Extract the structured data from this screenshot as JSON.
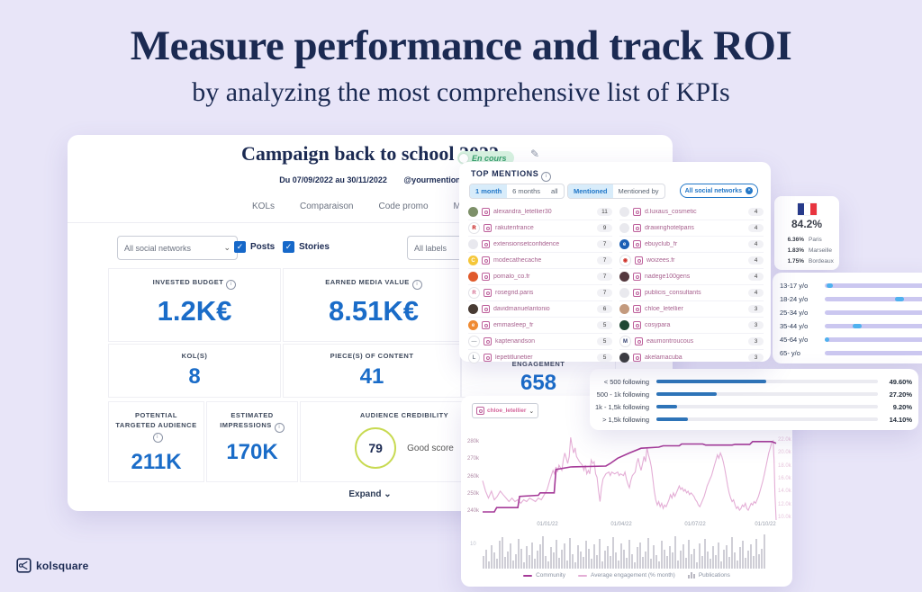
{
  "hero": {
    "title": "Measure performance and track ROI",
    "subtitle": "by analyzing the most comprehensive list of KPIs"
  },
  "icons": {
    "info": "i",
    "chevron_down": "⌄",
    "pencil": "✎",
    "check": "✓",
    "close": "×"
  },
  "campaign_card": {
    "title": "Campaign back to school 2022",
    "status_badge": "En cours",
    "date_range": "Du 07/09/2022 au 30/11/2022",
    "mention_handle": "@yourmention",
    "tabs": [
      "KOLs",
      "Comparaison",
      "Code promo",
      "Messages"
    ],
    "filters": {
      "social_networks": "All social networks",
      "posts_label": "Posts",
      "stories_label": "Stories",
      "labels_placeholder": "All labels"
    },
    "kpis": {
      "invested_budget": {
        "label": "INVESTED BUDGET",
        "value": "1.2K€"
      },
      "earned_media_value": {
        "label": "EARNED MEDIA VALUE",
        "value": "8.51K€"
      },
      "kols": {
        "label": "KOL(S)",
        "value": "8"
      },
      "pieces_of_content": {
        "label": "PIECE(S) OF CONTENT",
        "value": "41"
      },
      "engagement": {
        "label": "ENGAGEMENT",
        "value": "658"
      },
      "potential_targeted_audience": {
        "label": "POTENTIAL TARGETED AUDIENCE",
        "value": "211K"
      },
      "estimated_impressions": {
        "label": "ESTIMATED IMPRESSIONS",
        "value": "170K"
      },
      "audience_credibility": {
        "label": "AUDIENCE CREDIBILITY",
        "score": "79",
        "score_label": "Good score"
      }
    },
    "expand_label": "Expand"
  },
  "top_mentions": {
    "title": "TOP MENTIONS",
    "period_options": [
      "1 month",
      "6 months",
      "all"
    ],
    "period_active": "1 month",
    "mention_options": [
      "Mentioned",
      "Mentioned by"
    ],
    "mention_active": "Mentioned",
    "network_filter": "All social networks",
    "left": [
      {
        "name": "alexandra_letellier30",
        "count": "11",
        "av": "#7d9069",
        "ch": "",
        "cc": "#fff",
        "bd": 0
      },
      {
        "name": "rakutenfrance",
        "count": "9",
        "av": "#ffffff",
        "ch": "R",
        "cc": "#bf0000",
        "bd": 1
      },
      {
        "name": "extensionsetconfidence",
        "count": "7",
        "av": "#e8e8ee",
        "ch": "",
        "cc": "#fff",
        "bd": 0
      },
      {
        "name": "modecathecache",
        "count": "7",
        "av": "#f5c73a",
        "ch": "C",
        "cc": "#ffffff",
        "bd": 0
      },
      {
        "name": "pomalo_co.fr",
        "count": "7",
        "av": "#e05a2b",
        "ch": "",
        "cc": "#fff",
        "bd": 0
      },
      {
        "name": "rosegrid.paris",
        "count": "7",
        "av": "#ffffff",
        "ch": "R",
        "cc": "#d2688c",
        "bd": 1
      },
      {
        "name": "davidmanuelantonio",
        "count": "6",
        "av": "#473a33",
        "ch": "",
        "cc": "#fff",
        "bd": 0
      },
      {
        "name": "emmasleep_fr",
        "count": "5",
        "av": "#ef8b33",
        "ch": "e",
        "cc": "#ffffff",
        "bd": 0
      },
      {
        "name": "kaptenandson",
        "count": "5",
        "av": "#ffffff",
        "ch": "—",
        "cc": "#9aa0a8",
        "bd": 1
      },
      {
        "name": "lepetitlunetier",
        "count": "5",
        "av": "#ffffff",
        "ch": "L",
        "cc": "#7d8590",
        "bd": 1
      }
    ],
    "right": [
      {
        "name": "d.luxaus_cosmetic",
        "count": "4",
        "av": "#e9e9ee",
        "ch": "",
        "cc": "#fff",
        "bd": 0
      },
      {
        "name": "drawinghotelparis",
        "count": "4",
        "av": "#e9e9ee",
        "ch": "",
        "cc": "#fff",
        "bd": 0
      },
      {
        "name": "ebuyclub_fr",
        "count": "4",
        "av": "#1b5fb5",
        "ch": "e",
        "cc": "#ffffff",
        "bd": 0
      },
      {
        "name": "woizees.fr",
        "count": "4",
        "av": "#ffffff",
        "ch": "◉",
        "cc": "#d0342c",
        "bd": 1
      },
      {
        "name": "nadege100gens",
        "count": "4",
        "av": "#54383e",
        "ch": "",
        "cc": "#fff",
        "bd": 0
      },
      {
        "name": "publicis_consultants",
        "count": "4",
        "av": "#e9e9ee",
        "ch": "",
        "cc": "#fff",
        "bd": 0
      },
      {
        "name": "chloe_letellier",
        "count": "3",
        "av": "#c39a7e",
        "ch": "",
        "cc": "#fff",
        "bd": 0
      },
      {
        "name": "cosypara",
        "count": "3",
        "av": "#1e4733",
        "ch": "",
        "cc": "#fff",
        "bd": 0
      },
      {
        "name": "eaumontroucous",
        "count": "3",
        "av": "#ffffff",
        "ch": "M",
        "cc": "#33406e",
        "bd": 1
      },
      {
        "name": "akelamacuba",
        "count": "3",
        "av": "#3c3c42",
        "ch": "",
        "cc": "#fff",
        "bd": 0
      }
    ]
  },
  "geo_card": {
    "country_percent": "84.2%",
    "flag_colors": [
      "#273a8a",
      "#ffffff",
      "#e8343f"
    ],
    "cities": [
      {
        "pct": "6.36%",
        "city": "Paris"
      },
      {
        "pct": "1.83%",
        "city": "Marseille"
      },
      {
        "pct": "1.75%",
        "city": "Bordeaux"
      }
    ]
  },
  "age_panel": {
    "rows": [
      {
        "label": "13-17 y/o",
        "marker": [
          2,
          6
        ]
      },
      {
        "label": "18-24 y/o",
        "marker": [
          66,
          9
        ]
      },
      {
        "label": "25-34 y/o",
        "marker": null
      },
      {
        "label": "35-44 y/o",
        "marker": [
          26,
          9
        ]
      },
      {
        "label": "45-64 y/o",
        "marker": [
          0,
          4
        ]
      },
      {
        "label": "65- y/o",
        "marker": null
      }
    ]
  },
  "followers_card": {
    "rows": [
      {
        "label": "< 500 following",
        "pct": "49.60%",
        "value": 49.6
      },
      {
        "label": "500 - 1k following",
        "pct": "27.20%",
        "value": 27.2
      },
      {
        "label": "1k - 1,5k following",
        "pct": "9.20%",
        "value": 9.2
      },
      {
        "label": "> 1,5k following",
        "pct": "14.10%",
        "value": 14.1
      }
    ]
  },
  "chart_card": {
    "dropdown_value": "chloe_letellier",
    "chart_data": {
      "type": "line",
      "title": "",
      "y_left_ticks": [
        "280k",
        "270k",
        "260k",
        "250k",
        "240k"
      ],
      "y_right_ticks": [
        "22.0k",
        "20.0k",
        "18.0k",
        "16.0k",
        "14.0k",
        "12.0k",
        "10.0k"
      ],
      "x_ticks": [
        "01/01/22",
        "01/04/22",
        "01/07/22",
        "01/10/22"
      ],
      "legend": [
        "Community",
        "Average engagement (% month)",
        "Publications"
      ],
      "colors": {
        "community": "#a53a98",
        "engagement": "#e4aed6",
        "publications": "#cfced6"
      },
      "community_series": [
        [
          0,
          240
        ],
        [
          4,
          240
        ],
        [
          4.8,
          242.5
        ],
        [
          12,
          242.5
        ],
        [
          12.6,
          249
        ],
        [
          19,
          249.6
        ],
        [
          19.6,
          251
        ],
        [
          24.4,
          251
        ],
        [
          25,
          264.5
        ],
        [
          30,
          266
        ],
        [
          42,
          266.5
        ],
        [
          43.5,
          268
        ],
        [
          46,
          271
        ],
        [
          50,
          274
        ],
        [
          54,
          276.8
        ],
        [
          60,
          277.4
        ],
        [
          61.5,
          278.2
        ],
        [
          67,
          278.2
        ],
        [
          67.8,
          279.2
        ],
        [
          75,
          279.2
        ],
        [
          76,
          278.6
        ],
        [
          85,
          278.6
        ],
        [
          86,
          279
        ],
        [
          91,
          279
        ],
        [
          92,
          280.6
        ],
        [
          98.5,
          280.6
        ],
        [
          100,
          279.6
        ]
      ],
      "engagement_series": [
        [
          0,
          258
        ],
        [
          1,
          252
        ],
        [
          2,
          248
        ],
        [
          3,
          252
        ],
        [
          4,
          247
        ],
        [
          5,
          249
        ],
        [
          6,
          252
        ],
        [
          7,
          250
        ],
        [
          8,
          248
        ],
        [
          9,
          246
        ],
        [
          10,
          248
        ],
        [
          11,
          246
        ],
        [
          12,
          247
        ],
        [
          13,
          245
        ],
        [
          14,
          247
        ],
        [
          15,
          246
        ],
        [
          16,
          248
        ],
        [
          17,
          247
        ],
        [
          18,
          246
        ],
        [
          19,
          248
        ],
        [
          20,
          247
        ],
        [
          21,
          250
        ],
        [
          22,
          253
        ],
        [
          23,
          259
        ],
        [
          24,
          264
        ],
        [
          24.5,
          262
        ],
        [
          25,
          266
        ],
        [
          25.5,
          263
        ],
        [
          26,
          267
        ],
        [
          27,
          264
        ],
        [
          27.5,
          270
        ],
        [
          28,
          274
        ],
        [
          28.5,
          271
        ],
        [
          29,
          268
        ],
        [
          29.5,
          272
        ],
        [
          30,
          283
        ],
        [
          30.5,
          278
        ],
        [
          31,
          274
        ],
        [
          31.5,
          277
        ],
        [
          32,
          272
        ],
        [
          33,
          269
        ],
        [
          34,
          267
        ],
        [
          34.5,
          264
        ],
        [
          35,
          267
        ],
        [
          35.5,
          262
        ],
        [
          36,
          264
        ],
        [
          36.5,
          262
        ],
        [
          37,
          270
        ],
        [
          37.5,
          268
        ],
        [
          38,
          269
        ],
        [
          38.5,
          262
        ],
        [
          39,
          260
        ],
        [
          39.5,
          252
        ],
        [
          40,
          246
        ],
        [
          40.5,
          254
        ],
        [
          41,
          259
        ],
        [
          42,
          262
        ],
        [
          43,
          263
        ],
        [
          43.5,
          261
        ],
        [
          44,
          263
        ],
        [
          45,
          262
        ],
        [
          46,
          263
        ],
        [
          46.5,
          261
        ],
        [
          47,
          262
        ],
        [
          48,
          261
        ],
        [
          48.5,
          263
        ],
        [
          49,
          259
        ],
        [
          49.5,
          256
        ],
        [
          50,
          254
        ],
        [
          50.5,
          258
        ],
        [
          51,
          261
        ],
        [
          52,
          263
        ],
        [
          52.5,
          268
        ],
        [
          53,
          271
        ],
        [
          53.5,
          267
        ],
        [
          54,
          264
        ],
        [
          54.5,
          268
        ],
        [
          55,
          272
        ],
        [
          55.5,
          269
        ],
        [
          56,
          277
        ],
        [
          56.5,
          273
        ],
        [
          57,
          270
        ],
        [
          57.5,
          266
        ],
        [
          58,
          259
        ],
        [
          58.5,
          252
        ],
        [
          59,
          247
        ],
        [
          59.5,
          244
        ],
        [
          60,
          246
        ],
        [
          60.5,
          243
        ],
        [
          61,
          245
        ],
        [
          61.5,
          242
        ],
        [
          62,
          244
        ],
        [
          62.5,
          243
        ],
        [
          63,
          245
        ],
        [
          63.5,
          247
        ],
        [
          64,
          250
        ],
        [
          64.5,
          248
        ],
        [
          65,
          251
        ],
        [
          65.5,
          249
        ],
        [
          66,
          251
        ],
        [
          66.5,
          253
        ],
        [
          67,
          255
        ],
        [
          67.5,
          253
        ],
        [
          68,
          254
        ],
        [
          68.5,
          252
        ],
        [
          69,
          253
        ],
        [
          69.5,
          251
        ],
        [
          70,
          252
        ],
        [
          70.5,
          250
        ],
        [
          71,
          251
        ],
        [
          72,
          249
        ],
        [
          72.5,
          247
        ],
        [
          73,
          246
        ],
        [
          73.5,
          244
        ],
        [
          74,
          243
        ],
        [
          74.5,
          245
        ],
        [
          75,
          247
        ],
        [
          75.5,
          249
        ],
        [
          76,
          252
        ],
        [
          76.5,
          255
        ],
        [
          77,
          257
        ],
        [
          77.5,
          259
        ],
        [
          78,
          261
        ],
        [
          78.5,
          264
        ],
        [
          79,
          267
        ],
        [
          79.5,
          270
        ],
        [
          80,
          273
        ],
        [
          80.5,
          271
        ],
        [
          81,
          274
        ],
        [
          81.5,
          272
        ],
        [
          82,
          269
        ],
        [
          82.5,
          265
        ],
        [
          83,
          260
        ],
        [
          83.5,
          255
        ],
        [
          84,
          251
        ],
        [
          84.5,
          248
        ],
        [
          85,
          246
        ],
        [
          85.5,
          247
        ],
        [
          86,
          244
        ],
        [
          86.5,
          242
        ],
        [
          87,
          243
        ],
        [
          87.5,
          241
        ],
        [
          88,
          242
        ],
        [
          88.5,
          244
        ],
        [
          89,
          243
        ],
        [
          89.5,
          245
        ],
        [
          90,
          242
        ],
        [
          90.5,
          241
        ],
        [
          91,
          243
        ],
        [
          91.5,
          245
        ],
        [
          92,
          244
        ],
        [
          92.5,
          246
        ],
        [
          93,
          245
        ],
        [
          93.5,
          247
        ],
        [
          94,
          249
        ],
        [
          94.5,
          252
        ],
        [
          95,
          255
        ],
        [
          95.5,
          258
        ],
        [
          96,
          262
        ],
        [
          96.5,
          266
        ],
        [
          97,
          270
        ],
        [
          97.5,
          274
        ],
        [
          98,
          277
        ],
        [
          98.5,
          280
        ],
        [
          99,
          281
        ],
        [
          99.3,
          270
        ],
        [
          99.6,
          250
        ],
        [
          100,
          234
        ]
      ],
      "publications_bars": [
        12,
        18,
        7,
        22,
        15,
        9,
        26,
        30,
        11,
        16,
        24,
        8,
        14,
        28,
        19,
        6,
        21,
        13,
        25,
        9,
        17,
        23,
        31,
        12,
        7,
        20,
        15,
        27,
        10,
        18,
        24,
        8,
        29,
        14,
        6,
        22,
        16,
        11,
        26,
        19,
        9,
        23,
        13,
        28,
        7,
        17,
        21,
        12,
        30,
        15,
        8,
        24,
        18,
        10,
        27,
        14,
        6,
        20,
        25,
        11,
        16,
        29,
        9,
        22,
        13,
        7,
        26,
        18,
        12,
        21,
        15,
        31,
        8,
        17,
        23,
        10,
        27,
        14,
        19,
        6,
        24,
        12,
        28,
        16,
        9,
        21,
        13,
        25,
        7,
        18,
        22,
        11,
        30,
        15,
        8,
        20,
        26,
        10,
        17,
        23,
        12,
        28,
        14,
        19,
        32
      ],
      "publications_tick": "10"
    }
  },
  "brand": {
    "name": "kolsquare"
  }
}
